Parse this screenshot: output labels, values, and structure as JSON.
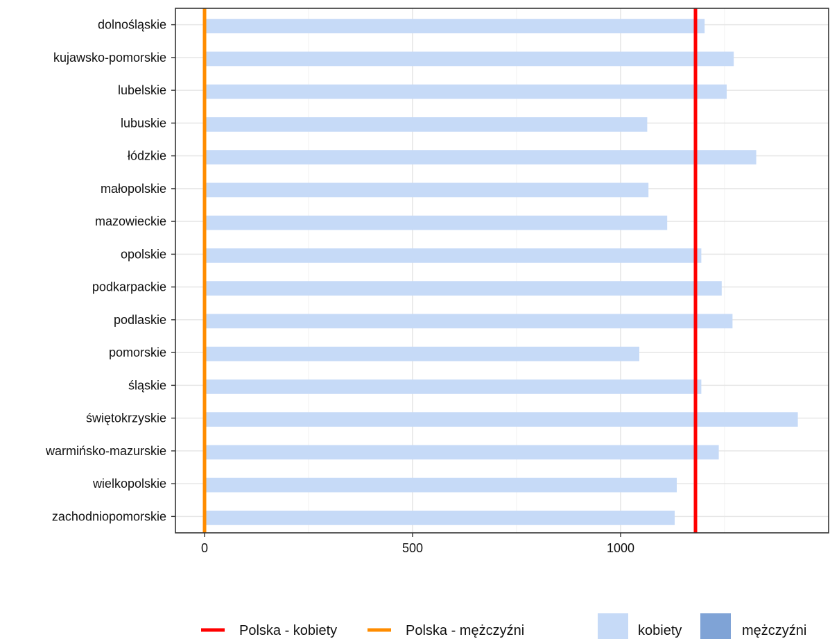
{
  "chart_data": {
    "type": "bar",
    "orientation": "horizontal",
    "title": "",
    "xlabel": "",
    "ylabel": "",
    "xlim": [
      -70,
      1500
    ],
    "x_ticks": [
      0,
      500,
      1000
    ],
    "x_tick_labels": [
      "0",
      "500",
      "1000"
    ],
    "grid": true,
    "legend_position": "bottom",
    "categories": [
      "dolnośląskie",
      "kujawsko-pomorskie",
      "lubelskie",
      "lubuskie",
      "łódzkie",
      "małopolskie",
      "mazowieckie",
      "opolskie",
      "podkarpackie",
      "podlaskie",
      "pomorskie",
      "śląskie",
      "świętokrzyskie",
      "warmińsko-mazurskie",
      "wielkopolskie",
      "zachodniopomorskie"
    ],
    "series": [
      {
        "name": "kobiety",
        "color": "#c6daf7",
        "values": [
          1202,
          1272,
          1255,
          1064,
          1326,
          1067,
          1112,
          1194,
          1243,
          1269,
          1045,
          1194,
          1426,
          1236,
          1135,
          1130
        ]
      },
      {
        "name": "mężczyźni",
        "color": "#7fa3d6",
        "values": [
          0,
          0,
          0,
          0,
          0,
          0,
          0,
          0,
          0,
          0,
          0,
          0,
          0,
          0,
          0,
          0
        ]
      }
    ],
    "reference_lines": [
      {
        "name": "Polska - kobiety",
        "value": 1180,
        "color": "#ff0000"
      },
      {
        "name": "Polska - mężczyźni",
        "value": 0,
        "color": "#ff8c00"
      }
    ]
  },
  "legend": {
    "lines": [
      {
        "label": "Polska - kobiety",
        "color": "#ff0000"
      },
      {
        "label": "Polska - mężczyźni",
        "color": "#ff8c00"
      }
    ],
    "fills": [
      {
        "label": "kobiety",
        "color": "#c6daf7"
      },
      {
        "label": "mężczyźni",
        "color": "#7fa3d6"
      }
    ]
  }
}
